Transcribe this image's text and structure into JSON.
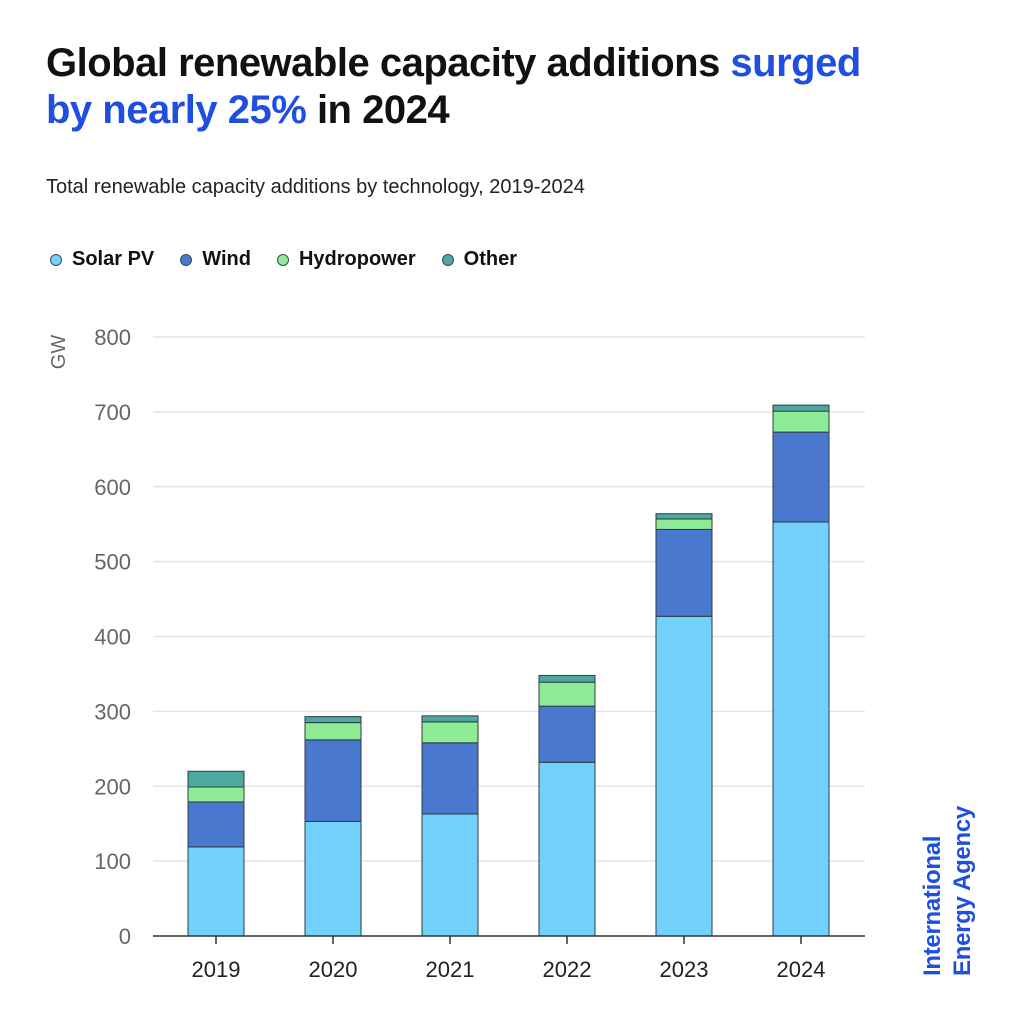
{
  "headline": {
    "part1": "Global renewable capacity additions ",
    "highlight1": "surged",
    "highlight2": "by nearly 25%",
    "part2": " in 2024"
  },
  "logo": {
    "line1": "International",
    "line2": "Energy Agency"
  },
  "colors": {
    "solar": "#72d1fa",
    "wind": "#4a78cf",
    "hydro": "#8dec95",
    "other": "#4fa89f",
    "brand_blue": "#1f4fe0"
  },
  "chart_data": {
    "type": "bar",
    "stacked": true,
    "title": "Total renewable capacity additions by technology, 2019-2024",
    "ylabel": "GW",
    "xlabel": "",
    "ylim": [
      0,
      800
    ],
    "yticks": [
      0,
      100,
      200,
      300,
      400,
      500,
      600,
      700,
      800
    ],
    "grid": true,
    "legend_position": "top-left",
    "categories": [
      "2019",
      "2020",
      "2021",
      "2022",
      "2023",
      "2024"
    ],
    "series": [
      {
        "name": "Solar PV",
        "color_key": "solar",
        "values": [
          119,
          153,
          163,
          232,
          427,
          553
        ]
      },
      {
        "name": "Wind",
        "color_key": "wind",
        "values": [
          60,
          109,
          95,
          75,
          116,
          120
        ]
      },
      {
        "name": "Hydropower",
        "color_key": "hydro",
        "values": [
          20,
          23,
          28,
          32,
          14,
          28
        ]
      },
      {
        "name": "Other",
        "color_key": "other",
        "values": [
          21,
          8,
          8,
          9,
          7,
          8
        ]
      }
    ]
  }
}
